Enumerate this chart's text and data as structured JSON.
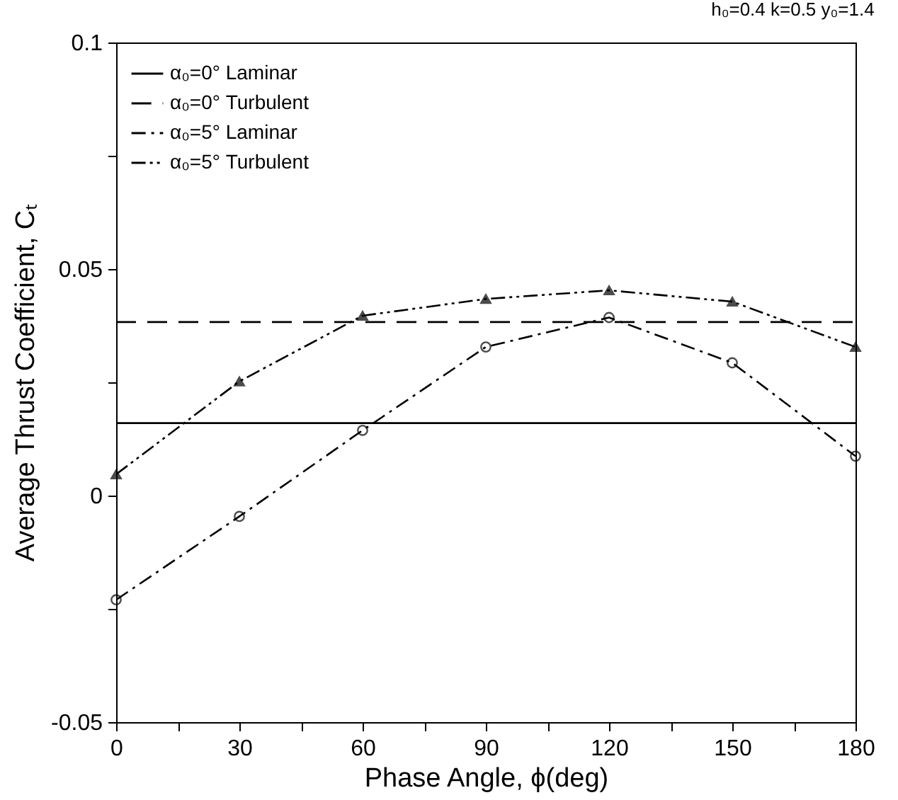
{
  "chart_data": {
    "type": "line",
    "subtitle": "h₀=0.4  k=0.5  y₀=1.4",
    "xlabel": "Phase Angle, ϕ(deg)",
    "ylabel": "Average Thrust Coefficient, Cₜ",
    "x": [
      0,
      30,
      60,
      90,
      120,
      150,
      180
    ],
    "xlim": [
      0,
      180
    ],
    "xticks": [
      0,
      {
        "value": 15,
        "label": null
      },
      30,
      {
        "value": 45,
        "label": null
      },
      60,
      {
        "value": 75,
        "label": null
      },
      90,
      {
        "value": 105,
        "label": null
      },
      120,
      {
        "value": 135,
        "label": null
      },
      150,
      {
        "value": 165,
        "label": null
      },
      180
    ],
    "ylim": [
      -0.05,
      0.1
    ],
    "yticks": [
      -0.05,
      {
        "value": -0.025,
        "label": null
      },
      0,
      {
        "value": 0.025,
        "label": null
      },
      0.05,
      {
        "value": 0.075,
        "label": null
      },
      0.1
    ],
    "grid": false,
    "legend": "top left",
    "series": [
      {
        "name": "α₀=0° Laminar",
        "color": "#000000",
        "line_style": "solid",
        "marker": "none",
        "values": [
          0.016,
          0.016,
          0.016,
          0.016,
          0.016,
          0.016,
          0.016
        ]
      },
      {
        "name": "α₀=0° Turbulent",
        "color": "#000000",
        "line_style": "dashed",
        "marker": "none",
        "values": [
          0.0383,
          0.0383,
          0.0383,
          0.0383,
          0.0383,
          0.0383,
          0.0383
        ]
      },
      {
        "name": "α₀=5° Laminar",
        "color": "#000000",
        "line_style": "dashdot",
        "marker": "circle",
        "values": [
          -0.023,
          -0.0046,
          0.0144,
          0.0328,
          0.0393,
          0.0293,
          0.0087
        ]
      },
      {
        "name": "α₀=5° Turbulent",
        "color": "#000000",
        "line_style": "dashdotdot",
        "marker": "triangle",
        "values": [
          0.0047,
          0.0252,
          0.0397,
          0.0434,
          0.0453,
          0.0428,
          0.0328
        ]
      }
    ]
  }
}
